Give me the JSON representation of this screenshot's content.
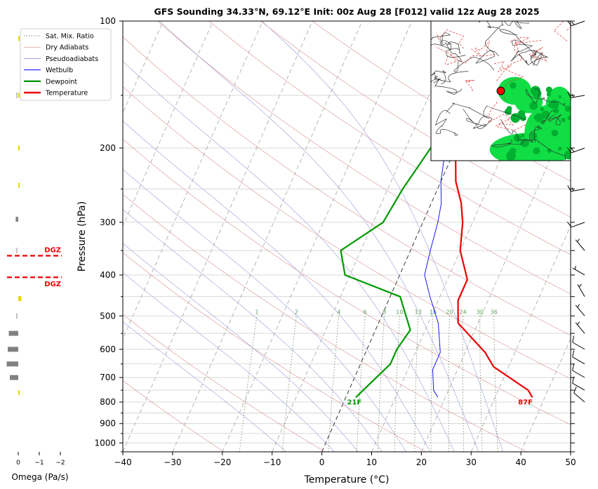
{
  "chart_data": {
    "type": "line",
    "subtype": "skew-t log-p sounding",
    "title": "GFS Sounding 34.33°N, 69.12°E Init: 00z Aug 28 [F012] valid 12z Aug 28 2025",
    "xlabel": "Temperature (°C)",
    "ylabel": "Pressure (hPa)",
    "xlim": [
      -40,
      50
    ],
    "ylim": [
      1050,
      100
    ],
    "y_scale": "log",
    "x_ticks": [
      "−40",
      "−30",
      "−20",
      "−10",
      "0",
      "10",
      "20",
      "30",
      "40",
      "50"
    ],
    "y_ticks": [
      {
        "p": 100,
        "label": "100"
      },
      {
        "p": 200,
        "label": "200"
      },
      {
        "p": 300,
        "label": "300"
      },
      {
        "p": 400,
        "label": "400"
      },
      {
        "p": 500,
        "label": "500"
      },
      {
        "p": 600,
        "label": "600"
      },
      {
        "p": 700,
        "label": "700"
      },
      {
        "p": 800,
        "label": "800"
      },
      {
        "p": 900,
        "label": "900"
      },
      {
        "p": 1000,
        "label": "1000"
      }
    ],
    "legend": {
      "placement": "upper-left",
      "entries": [
        {
          "label": "Sat. Mix. Ratio",
          "color": "#4a7a4a",
          "style": "dotted"
        },
        {
          "label": "Dry Adiabats",
          "color": "#d08080",
          "style": "solid-thin"
        },
        {
          "label": "Pseudoadiabats",
          "color": "#8080d0",
          "style": "solid-thin"
        },
        {
          "label": "Wetbulb",
          "color": "#0000ff",
          "style": "solid"
        },
        {
          "label": "Dewpoint",
          "color": "#009900",
          "style": "solid-thick"
        },
        {
          "label": "Temperature",
          "color": "#ee0000",
          "style": "solid-thick"
        }
      ]
    },
    "series": [
      {
        "name": "Temperature",
        "color": "#ee0000",
        "points": [
          [
            37.5,
            780
          ],
          [
            36,
            750
          ],
          [
            27,
            660
          ],
          [
            24,
            610
          ],
          [
            16,
            520
          ],
          [
            14,
            460
          ],
          [
            14,
            410
          ],
          [
            10,
            350
          ],
          [
            8,
            300
          ],
          [
            6,
            270
          ],
          [
            3,
            240
          ],
          [
            0,
            200
          ],
          [
            -2,
            170
          ],
          [
            -5,
            140
          ],
          [
            -8,
            100
          ]
        ]
      },
      {
        "name": "Dewpoint",
        "color": "#009900",
        "points": [
          [
            2,
            780
          ],
          [
            6,
            650
          ],
          [
            6,
            600
          ],
          [
            7,
            540
          ],
          [
            2,
            450
          ],
          [
            -11,
            400
          ],
          [
            -14,
            350
          ],
          [
            -8,
            300
          ],
          [
            -7,
            250
          ],
          [
            -5,
            200
          ],
          [
            -4,
            170
          ],
          [
            -5,
            140
          ],
          [
            -5,
            100
          ]
        ]
      },
      {
        "name": "Wetbulb",
        "color": "#0000ff",
        "points": [
          [
            18.5,
            780
          ],
          [
            17,
            750
          ],
          [
            15,
            670
          ],
          [
            15,
            610
          ],
          [
            12,
            520
          ],
          [
            8,
            450
          ],
          [
            5,
            400
          ],
          [
            4,
            350
          ],
          [
            3,
            300
          ],
          [
            2,
            270
          ],
          [
            0,
            240
          ],
          [
            -2,
            200
          ],
          [
            -3,
            170
          ],
          [
            -5,
            140
          ],
          [
            -8,
            100
          ]
        ]
      }
    ],
    "dry_adiabats_theta_K": [
      250,
      270,
      290,
      310,
      330,
      350,
      370,
      390,
      410,
      430,
      450
    ],
    "pseudoadiabats_theta_w_C": [
      -10,
      0,
      5,
      10,
      15,
      20,
      25,
      30,
      35
    ],
    "mixing_ratio_gkg": [
      1,
      2,
      4,
      6,
      8,
      10,
      13,
      16,
      20,
      24,
      30,
      36
    ],
    "mixing_ratio_labels": [
      "1",
      "2",
      "4",
      "6",
      "8",
      "10",
      "13",
      "16",
      "20",
      "24",
      "30",
      "36"
    ],
    "isotherm_0C": 0,
    "annotations": {
      "surface_dewpoint": "21F",
      "surface_temperature": "87F",
      "dgz_label": "DGZ"
    },
    "omega_panel": {
      "xlabel": "Omega (Pa/s)",
      "x_ticks": [
        "0",
        "−1",
        "−2"
      ],
      "bars": [
        {
          "p": 110,
          "omega": -0.05,
          "color": "#e8d800"
        },
        {
          "p": 150,
          "omega": -0.05,
          "color": "#e8d800"
        },
        {
          "p": 200,
          "omega": -0.05,
          "color": "#e8d800"
        },
        {
          "p": 245,
          "omega": -0.05,
          "color": "#e8d800"
        },
        {
          "p": 295,
          "omega": 0.12,
          "color": "#808080"
        },
        {
          "p": 455,
          "omega": -0.15,
          "color": "#e8d800"
        },
        {
          "p": 550,
          "omega": 0.45,
          "color": "#808080"
        },
        {
          "p": 600,
          "omega": 0.5,
          "color": "#808080"
        },
        {
          "p": 650,
          "omega": 0.55,
          "color": "#808080"
        },
        {
          "p": 700,
          "omega": 0.4,
          "color": "#808080"
        },
        {
          "p": 760,
          "omega": -0.05,
          "color": "#e8d800"
        }
      ],
      "dgz_bounds_hPa": [
        360,
        405
      ]
    },
    "wind_barbs": [
      {
        "p": 100,
        "dir": 250,
        "kt": 15
      },
      {
        "p": 150,
        "dir": 260,
        "kt": 15
      },
      {
        "p": 200,
        "dir": 250,
        "kt": 20
      },
      {
        "p": 250,
        "dir": 260,
        "kt": 15
      },
      {
        "p": 300,
        "dir": 250,
        "kt": 10
      },
      {
        "p": 350,
        "dir": 320,
        "kt": 5
      },
      {
        "p": 400,
        "dir": 300,
        "kt": 5
      },
      {
        "p": 450,
        "dir": 330,
        "kt": 5
      },
      {
        "p": 500,
        "dir": 320,
        "kt": 5
      },
      {
        "p": 550,
        "dir": 320,
        "kt": 5
      },
      {
        "p": 600,
        "dir": 300,
        "kt": 10
      },
      {
        "p": 650,
        "dir": 300,
        "kt": 10
      },
      {
        "p": 700,
        "dir": 300,
        "kt": 10
      },
      {
        "p": 750,
        "dir": 300,
        "kt": 10
      },
      {
        "p": 800,
        "dir": 310,
        "kt": 10
      }
    ],
    "inset_map": {
      "description": "regional mean sea level pressure / precipitation map with sounding location marked",
      "marker_color": "#ff0000",
      "precip_color": "#00cc33"
    }
  }
}
